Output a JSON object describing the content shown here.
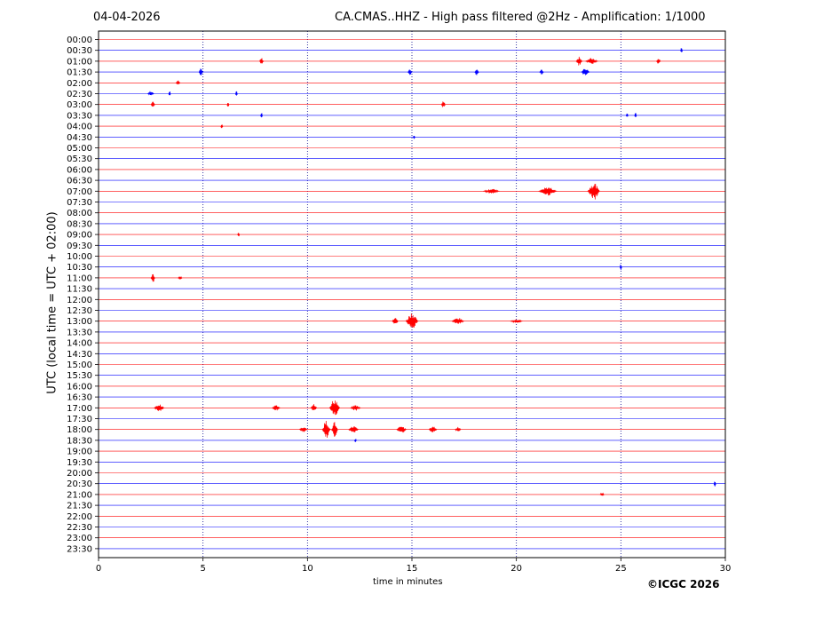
{
  "header": {
    "date": "04-04-2026",
    "title": "CA.CMAS..HHZ - High pass filtered @2Hz - Amplification: 1/1000"
  },
  "footer": {
    "copyright": "©ICGC 2026"
  },
  "chart_data": {
    "type": "line",
    "title": "CA.CMAS..HHZ - High pass filtered @2Hz - Amplification: 1/1000",
    "xlabel": "time in minutes",
    "ylabel": "UTC (local time = UTC + 02:00)",
    "xlim": [
      0,
      30
    ],
    "xticks": [
      0,
      5,
      10,
      15,
      20,
      25,
      30
    ],
    "grid": {
      "x": true,
      "style": "dotted",
      "color": "#00008b"
    },
    "row_labels": [
      "00:00",
      "00:30",
      "01:00",
      "01:30",
      "02:00",
      "02:30",
      "03:00",
      "03:30",
      "04:00",
      "04:30",
      "05:00",
      "05:30",
      "06:00",
      "06:30",
      "07:00",
      "07:30",
      "08:00",
      "08:30",
      "09:00",
      "09:30",
      "10:00",
      "10:30",
      "11:00",
      "11:30",
      "12:00",
      "12:30",
      "13:00",
      "13:30",
      "14:00",
      "14:30",
      "15:00",
      "15:30",
      "16:00",
      "16:30",
      "17:00",
      "17:30",
      "18:00",
      "18:30",
      "19:00",
      "19:30",
      "20:00",
      "20:30",
      "21:00",
      "21:30",
      "22:00",
      "22:30",
      "23:00",
      "23:30"
    ],
    "trace_colors": [
      "#ff0000",
      "#0000ff"
    ],
    "events": [
      {
        "row": 1,
        "t": 27.9,
        "amp": 0.3,
        "dur": 0.1
      },
      {
        "row": 2,
        "t": 7.8,
        "amp": 0.3,
        "dur": 0.2
      },
      {
        "row": 2,
        "t": 23.0,
        "amp": 0.4,
        "dur": 0.3
      },
      {
        "row": 2,
        "t": 23.6,
        "amp": 0.25,
        "dur": 0.6
      },
      {
        "row": 2,
        "t": 26.8,
        "amp": 0.25,
        "dur": 0.2
      },
      {
        "row": 3,
        "t": 4.9,
        "amp": 0.3,
        "dur": 0.2
      },
      {
        "row": 3,
        "t": 14.9,
        "amp": 0.25,
        "dur": 0.2
      },
      {
        "row": 3,
        "t": 18.1,
        "amp": 0.25,
        "dur": 0.2
      },
      {
        "row": 3,
        "t": 21.2,
        "amp": 0.2,
        "dur": 0.2
      },
      {
        "row": 3,
        "t": 23.3,
        "amp": 0.4,
        "dur": 0.4
      },
      {
        "row": 4,
        "t": 3.8,
        "amp": 0.2,
        "dur": 0.2
      },
      {
        "row": 5,
        "t": 2.5,
        "amp": 0.2,
        "dur": 0.3
      },
      {
        "row": 5,
        "t": 3.4,
        "amp": 0.2,
        "dur": 0.1
      },
      {
        "row": 5,
        "t": 6.6,
        "amp": 0.2,
        "dur": 0.1
      },
      {
        "row": 6,
        "t": 2.6,
        "amp": 0.2,
        "dur": 0.2
      },
      {
        "row": 6,
        "t": 6.2,
        "amp": 0.15,
        "dur": 0.1
      },
      {
        "row": 6,
        "t": 16.5,
        "amp": 0.3,
        "dur": 0.2
      },
      {
        "row": 7,
        "t": 7.8,
        "amp": 0.3,
        "dur": 0.1
      },
      {
        "row": 7,
        "t": 25.3,
        "amp": 0.2,
        "dur": 0.1
      },
      {
        "row": 7,
        "t": 25.7,
        "amp": 0.2,
        "dur": 0.1
      },
      {
        "row": 8,
        "t": 5.9,
        "amp": 0.2,
        "dur": 0.1
      },
      {
        "row": 9,
        "t": 15.1,
        "amp": 0.15,
        "dur": 0.1
      },
      {
        "row": 14,
        "t": 18.8,
        "amp": 0.15,
        "dur": 0.8
      },
      {
        "row": 14,
        "t": 21.5,
        "amp": 0.4,
        "dur": 0.9
      },
      {
        "row": 14,
        "t": 23.7,
        "amp": 1.0,
        "dur": 0.6
      },
      {
        "row": 18,
        "t": 6.7,
        "amp": 0.15,
        "dur": 0.1
      },
      {
        "row": 21,
        "t": 25.0,
        "amp": 0.3,
        "dur": 0.1
      },
      {
        "row": 22,
        "t": 2.6,
        "amp": 0.5,
        "dur": 0.2
      },
      {
        "row": 22,
        "t": 3.9,
        "amp": 0.15,
        "dur": 0.2
      },
      {
        "row": 26,
        "t": 14.2,
        "amp": 0.3,
        "dur": 0.3
      },
      {
        "row": 26,
        "t": 15.0,
        "amp": 1.0,
        "dur": 0.6
      },
      {
        "row": 26,
        "t": 17.2,
        "amp": 0.3,
        "dur": 0.6
      },
      {
        "row": 26,
        "t": 20.0,
        "amp": 0.1,
        "dur": 0.6
      },
      {
        "row": 34,
        "t": 2.9,
        "amp": 0.3,
        "dur": 0.5
      },
      {
        "row": 34,
        "t": 8.5,
        "amp": 0.2,
        "dur": 0.4
      },
      {
        "row": 34,
        "t": 10.3,
        "amp": 0.4,
        "dur": 0.3
      },
      {
        "row": 34,
        "t": 11.3,
        "amp": 1.0,
        "dur": 0.5
      },
      {
        "row": 34,
        "t": 12.3,
        "amp": 0.2,
        "dur": 0.5
      },
      {
        "row": 36,
        "t": 9.8,
        "amp": 0.2,
        "dur": 0.4
      },
      {
        "row": 36,
        "t": 10.9,
        "amp": 1.0,
        "dur": 0.4
      },
      {
        "row": 36,
        "t": 11.3,
        "amp": 0.9,
        "dur": 0.3
      },
      {
        "row": 36,
        "t": 12.2,
        "amp": 0.3,
        "dur": 0.5
      },
      {
        "row": 36,
        "t": 14.5,
        "amp": 0.3,
        "dur": 0.5
      },
      {
        "row": 36,
        "t": 16.0,
        "amp": 0.3,
        "dur": 0.4
      },
      {
        "row": 36,
        "t": 17.2,
        "amp": 0.15,
        "dur": 0.3
      },
      {
        "row": 37,
        "t": 12.3,
        "amp": 0.1,
        "dur": 0.1
      },
      {
        "row": 41,
        "t": 29.5,
        "amp": 0.2,
        "dur": 0.1
      },
      {
        "row": 42,
        "t": 24.1,
        "amp": 0.1,
        "dur": 0.2
      }
    ]
  }
}
